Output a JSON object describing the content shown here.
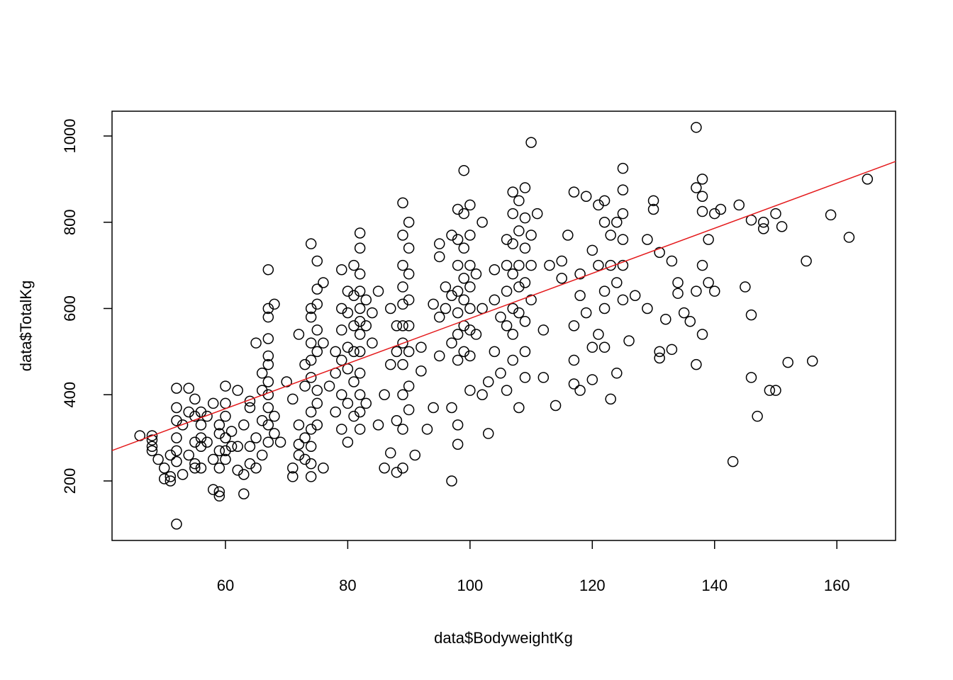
{
  "chart_data": {
    "type": "scatter",
    "xlabel": "data$BodyweightKg",
    "ylabel": "data$TotalKg",
    "xlim": [
      41.45,
      169.6
    ],
    "ylim": [
      62,
      1057.5
    ],
    "xticks": [
      60,
      80,
      100,
      120,
      140,
      160
    ],
    "yticks": [
      200,
      400,
      600,
      800,
      1000
    ],
    "color": "#000000",
    "fit_line": {
      "x": [
        41.45,
        169.6
      ],
      "y": [
        270.6,
        940.9
      ],
      "color": "#e41a1c"
    },
    "x": [
      46,
      48,
      48,
      48,
      48,
      49,
      50,
      50,
      51,
      51,
      51,
      52,
      52,
      52,
      52,
      52,
      52,
      52,
      53,
      53,
      54,
      54,
      54,
      55,
      55,
      55,
      55,
      55,
      56,
      56,
      56,
      56,
      56,
      57,
      57,
      58,
      58,
      58,
      59,
      59,
      59,
      59,
      59,
      59,
      60,
      60,
      60,
      60,
      60,
      60,
      61,
      61,
      62,
      62,
      62,
      63,
      63,
      63,
      64,
      64,
      64,
      64,
      65,
      65,
      65,
      66,
      66,
      66,
      66,
      67,
      67,
      67,
      67,
      67,
      67,
      67,
      67,
      67,
      67,
      67,
      68,
      68,
      68,
      69,
      70,
      71,
      71,
      71,
      72,
      72,
      72,
      72,
      73,
      73,
      73,
      73,
      74,
      74,
      74,
      74,
      74,
      74,
      74,
      74,
      74,
      74,
      74,
      75,
      75,
      75,
      75,
      75,
      75,
      75,
      75,
      76,
      76,
      76,
      77,
      78,
      78,
      78,
      79,
      79,
      79,
      79,
      79,
      79,
      80,
      80,
      80,
      80,
      80,
      80,
      81,
      81,
      81,
      81,
      81,
      81,
      82,
      82,
      82,
      82,
      82,
      82,
      82,
      82,
      82,
      82,
      82,
      82,
      83,
      83,
      83,
      84,
      84,
      85,
      85,
      86,
      86,
      87,
      87,
      87,
      88,
      88,
      88,
      88,
      89,
      89,
      89,
      89,
      89,
      89,
      89,
      89,
      89,
      89,
      89,
      90,
      90,
      90,
      90,
      90,
      90,
      90,
      90,
      91,
      92,
      92,
      93,
      94,
      94,
      95,
      95,
      95,
      95,
      96,
      96,
      97,
      97,
      97,
      97,
      97,
      98,
      98,
      98,
      98,
      98,
      98,
      98,
      98,
      98,
      99,
      99,
      99,
      99,
      99,
      99,
      99,
      100,
      100,
      100,
      100,
      100,
      100,
      100,
      100,
      101,
      101,
      102,
      102,
      102,
      103,
      103,
      104,
      104,
      104,
      105,
      105,
      106,
      106,
      106,
      106,
      106,
      107,
      107,
      107,
      107,
      107,
      107,
      107,
      108,
      108,
      108,
      108,
      108,
      108,
      109,
      109,
      109,
      109,
      109,
      109,
      109,
      110,
      110,
      110,
      110,
      111,
      112,
      112,
      113,
      114,
      115,
      115,
      116,
      117,
      117,
      117,
      117,
      118,
      118,
      118,
      119,
      119,
      120,
      120,
      120,
      121,
      121,
      121,
      122,
      122,
      122,
      122,
      122,
      123,
      123,
      123,
      124,
      124,
      124,
      125,
      125,
      125,
      125,
      125,
      125,
      126,
      127,
      129,
      129,
      130,
      130,
      131,
      131,
      131,
      132,
      133,
      133,
      134,
      134,
      135,
      136,
      137,
      137,
      137,
      137,
      138,
      138,
      138,
      138,
      138,
      139,
      139,
      140,
      140,
      141,
      143,
      144,
      145,
      146,
      146,
      146,
      147,
      148,
      148,
      149,
      150,
      150,
      151,
      152,
      155,
      156,
      159,
      162,
      165
    ],
    "values": [
      305,
      305,
      295,
      280,
      270,
      250,
      205,
      230,
      200,
      260,
      210,
      415,
      340,
      300,
      270,
      245,
      100,
      370,
      330,
      215,
      415,
      360,
      260,
      230,
      240,
      350,
      390,
      290,
      300,
      330,
      360,
      280,
      230,
      290,
      350,
      180,
      250,
      380,
      165,
      175,
      230,
      270,
      310,
      330,
      420,
      380,
      350,
      300,
      270,
      250,
      315,
      280,
      410,
      280,
      225,
      330,
      170,
      215,
      385,
      370,
      280,
      240,
      520,
      300,
      230,
      450,
      410,
      340,
      260,
      490,
      470,
      430,
      400,
      370,
      330,
      290,
      530,
      580,
      600,
      690,
      610,
      350,
      310,
      290,
      430,
      230,
      210,
      390,
      540,
      330,
      285,
      260,
      470,
      420,
      300,
      250,
      600,
      580,
      520,
      480,
      440,
      360,
      320,
      280,
      240,
      210,
      750,
      710,
      645,
      610,
      550,
      500,
      410,
      380,
      330,
      660,
      520,
      230,
      420,
      500,
      450,
      360,
      690,
      600,
      550,
      480,
      400,
      320,
      640,
      590,
      510,
      460,
      380,
      290,
      700,
      630,
      560,
      500,
      430,
      350,
      775,
      740,
      680,
      640,
      600,
      570,
      540,
      500,
      450,
      400,
      360,
      320,
      620,
      560,
      380,
      590,
      520,
      640,
      330,
      400,
      230,
      600,
      470,
      265,
      560,
      500,
      220,
      340,
      845,
      770,
      700,
      650,
      610,
      560,
      520,
      470,
      400,
      320,
      230,
      800,
      740,
      680,
      620,
      560,
      500,
      420,
      365,
      260,
      455,
      510,
      320,
      610,
      370,
      750,
      720,
      580,
      490,
      650,
      600,
      770,
      630,
      520,
      370,
      200,
      830,
      760,
      700,
      640,
      590,
      540,
      480,
      330,
      285,
      920,
      820,
      740,
      670,
      620,
      560,
      500,
      840,
      770,
      700,
      650,
      600,
      550,
      490,
      410,
      680,
      540,
      800,
      600,
      400,
      430,
      310,
      690,
      620,
      500,
      580,
      450,
      760,
      700,
      640,
      560,
      410,
      870,
      820,
      750,
      680,
      600,
      540,
      480,
      850,
      780,
      700,
      650,
      590,
      370,
      880,
      810,
      740,
      660,
      570,
      500,
      440,
      985,
      770,
      700,
      620,
      820,
      550,
      440,
      700,
      375,
      710,
      670,
      770,
      870,
      560,
      480,
      425,
      680,
      630,
      410,
      860,
      590,
      735,
      510,
      435,
      840,
      700,
      540,
      850,
      800,
      640,
      600,
      510,
      770,
      700,
      390,
      800,
      660,
      450,
      925,
      875,
      820,
      760,
      700,
      620,
      525,
      630,
      600,
      760,
      850,
      830,
      730,
      500,
      485,
      575,
      710,
      505,
      660,
      635,
      590,
      570,
      880,
      640,
      470,
      1020,
      900,
      860,
      825,
      700,
      540,
      760,
      660,
      820,
      640,
      830,
      245,
      840,
      650,
      805,
      585,
      440,
      350,
      800,
      785,
      410,
      410,
      820,
      790,
      475,
      710,
      478,
      817,
      765,
      900
    ]
  }
}
